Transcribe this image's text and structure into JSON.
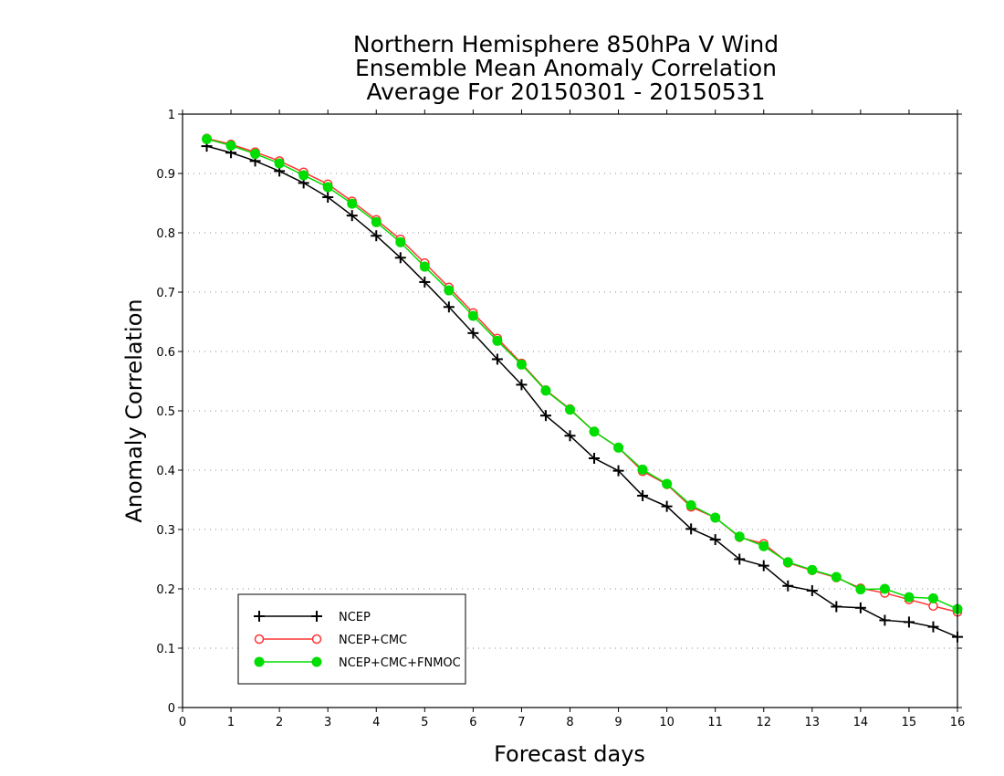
{
  "chart_data": {
    "type": "line",
    "title": [
      "Northern Hemisphere 850hPa V Wind",
      "Ensemble Mean Anomaly Correlation",
      "Average For 20150301 - 20150531"
    ],
    "xlabel": "Forecast days",
    "ylabel": "Anomaly Correlation",
    "xlim": [
      0,
      16
    ],
    "ylim": [
      0,
      1
    ],
    "x_ticks": [
      0,
      1,
      2,
      3,
      4,
      5,
      6,
      7,
      8,
      9,
      10,
      11,
      12,
      13,
      14,
      15,
      16
    ],
    "y_ticks": [
      0,
      0.1,
      0.2,
      0.3,
      0.4,
      0.5,
      0.6,
      0.7,
      0.8,
      0.9,
      1
    ],
    "x_tick_labels": [
      "0",
      "1",
      "2",
      "3",
      "4",
      "5",
      "6",
      "7",
      "8",
      "9",
      "10",
      "11",
      "12",
      "13",
      "14",
      "15",
      "16"
    ],
    "y_tick_labels": [
      "0",
      "0.1",
      "0.2",
      "0.3",
      "0.4",
      "0.5",
      "0.6",
      "0.7",
      "0.8",
      "0.9",
      "1"
    ],
    "grid": "horizontal-dotted",
    "legend_position": "bottom-left",
    "x": [
      0.5,
      1,
      1.5,
      2,
      2.5,
      3,
      3.5,
      4,
      4.5,
      5,
      5.5,
      6,
      6.5,
      7,
      7.5,
      8,
      8.5,
      9,
      9.5,
      10,
      10.5,
      11,
      11.5,
      12,
      12.5,
      13,
      13.5,
      14,
      14.5,
      15,
      15.5,
      16
    ],
    "series": [
      {
        "name": "NCEP",
        "color": "#000000",
        "marker": "plus",
        "values": [
          0.946,
          0.935,
          0.921,
          0.904,
          0.884,
          0.86,
          0.829,
          0.795,
          0.758,
          0.717,
          0.675,
          0.631,
          0.587,
          0.544,
          0.492,
          0.458,
          0.42,
          0.399,
          0.357,
          0.339,
          0.301,
          0.283,
          0.25,
          0.239,
          0.205,
          0.197,
          0.17,
          0.168,
          0.147,
          0.144,
          0.136,
          0.119
        ]
      },
      {
        "name": "NCEP+CMC",
        "color": "#ff3333",
        "marker": "open-circle",
        "values": [
          0.959,
          0.949,
          0.936,
          0.921,
          0.902,
          0.882,
          0.853,
          0.822,
          0.789,
          0.749,
          0.708,
          0.665,
          0.622,
          0.58,
          0.535,
          0.503,
          0.465,
          0.438,
          0.398,
          0.376,
          0.338,
          0.32,
          0.287,
          0.276,
          0.244,
          0.231,
          0.219,
          0.201,
          0.193,
          0.182,
          0.171,
          0.161
        ]
      },
      {
        "name": "NCEP+CMC+FNMOC",
        "color": "#00dd00",
        "marker": "filled-circle",
        "values": [
          0.958,
          0.947,
          0.933,
          0.917,
          0.897,
          0.877,
          0.849,
          0.818,
          0.784,
          0.743,
          0.703,
          0.66,
          0.618,
          0.578,
          0.534,
          0.502,
          0.465,
          0.438,
          0.401,
          0.377,
          0.341,
          0.32,
          0.288,
          0.272,
          0.245,
          0.232,
          0.22,
          0.199,
          0.2,
          0.186,
          0.184,
          0.166
        ]
      }
    ]
  }
}
